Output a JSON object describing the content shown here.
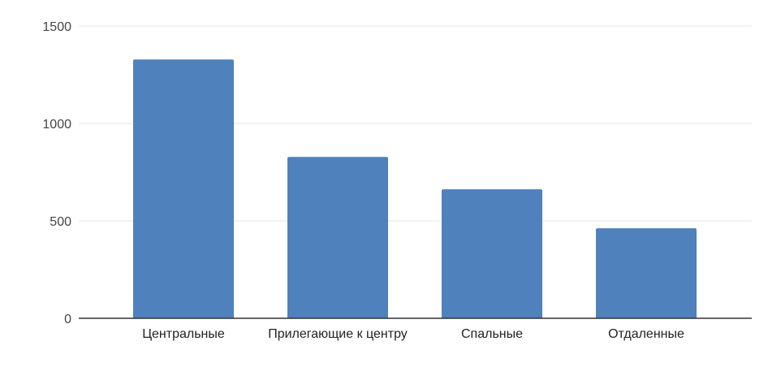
{
  "chart_data": {
    "type": "bar",
    "categories": [
      "Центральные",
      "Прилегающие к центру",
      "Спальные",
      "Отдаленные"
    ],
    "series": [
      {
        "values": [
          1328,
          828,
          662,
          462
        ]
      }
    ],
    "y_ticks": [
      0,
      500,
      1000,
      1500
    ],
    "ylim": [
      0,
      1500
    ],
    "grid": true,
    "legend": "none",
    "bar_color": "#4f81bd",
    "grid_color": "#e6e6e6",
    "axis_color": "#333333"
  }
}
